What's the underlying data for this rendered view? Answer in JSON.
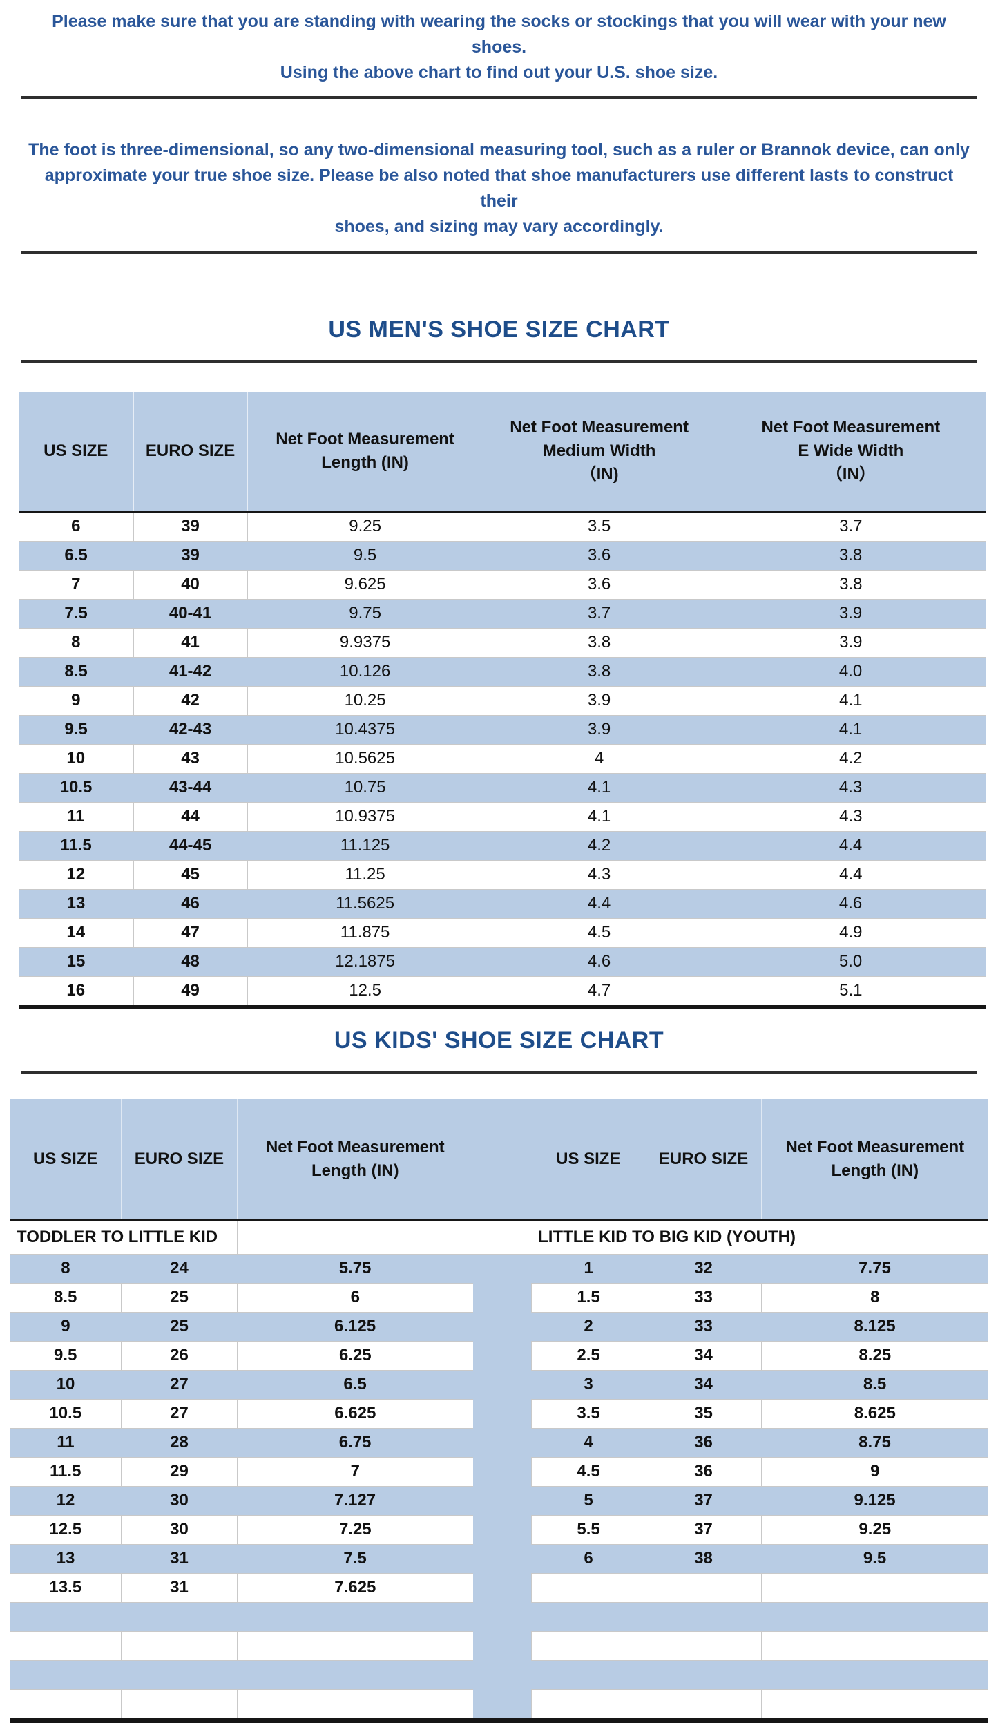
{
  "colors": {
    "stripe_blue": "#B8CCE4",
    "title_blue": "#1E4D8A",
    "intro_blue": "#2A5699",
    "rule_dark": "#2e2e2e",
    "text": "#111111"
  },
  "intro": {
    "paragraph1": "Please make sure that you are standing with wearing the socks or stockings that you will wear with your new shoes.\nUsing the above chart to find out your U.S. shoe size.",
    "paragraph2": "The foot is three-dimensional, so any two-dimensional measuring tool, such as a ruler or Brannok device, can only\napproximate your true shoe size. Please be also noted that shoe manufacturers use different lasts to construct their\nshoes, and sizing may vary accordingly."
  },
  "mens_chart": {
    "title": "US MEN'S SHOE SIZE CHART",
    "headers": [
      "US SIZE",
      "EURO SIZE",
      "Net Foot Measurement\nLength (IN)",
      "Net Foot Measurement\nMedium Width\n（IN)",
      "Net Foot Measurement\nE Wide Width\n（IN）"
    ],
    "rows": [
      [
        "6",
        "39",
        "9.25",
        "3.5",
        "3.7"
      ],
      [
        "6.5",
        "39",
        "9.5",
        "3.6",
        "3.8"
      ],
      [
        "7",
        "40",
        "9.625",
        "3.6",
        "3.8"
      ],
      [
        "7.5",
        "40-41",
        "9.75",
        "3.7",
        "3.9"
      ],
      [
        "8",
        "41",
        "9.9375",
        "3.8",
        "3.9"
      ],
      [
        "8.5",
        "41-42",
        "10.126",
        "3.8",
        "4.0"
      ],
      [
        "9",
        "42",
        "10.25",
        "3.9",
        "4.1"
      ],
      [
        "9.5",
        "42-43",
        "10.4375",
        "3.9",
        "4.1"
      ],
      [
        "10",
        "43",
        "10.5625",
        "4",
        "4.2"
      ],
      [
        "10.5",
        "43-44",
        "10.75",
        "4.1",
        "4.3"
      ],
      [
        "11",
        "44",
        "10.9375",
        "4.1",
        "4.3"
      ],
      [
        "11.5",
        "44-45",
        "11.125",
        "4.2",
        "4.4"
      ],
      [
        "12",
        "45",
        "11.25",
        "4.3",
        "4.4"
      ],
      [
        "13",
        "46",
        "11.5625",
        "4.4",
        "4.6"
      ],
      [
        "14",
        "47",
        "11.875",
        "4.5",
        "4.9"
      ],
      [
        "15",
        "48",
        "12.1875",
        "4.6",
        "5.0"
      ],
      [
        "16",
        "49",
        "12.5",
        "4.7",
        "5.1"
      ]
    ]
  },
  "kids_chart": {
    "title": "US KIDS' SHOE SIZE CHART",
    "headers_left": [
      "US SIZE",
      "EURO SIZE",
      "Net Foot Measurement\nLength (IN)"
    ],
    "headers_right": [
      "US SIZE",
      "EURO SIZE",
      "Net Foot Measurement\nLength (IN)"
    ],
    "section_left": "TODDLER TO LITTLE KID",
    "section_right": "LITTLE KID TO BIG KID (YOUTH)",
    "rows": [
      {
        "left": [
          "8",
          "24",
          "5.75"
        ],
        "right": [
          "1",
          "32",
          "7.75"
        ]
      },
      {
        "left": [
          "8.5",
          "25",
          "6"
        ],
        "right": [
          "1.5",
          "33",
          "8"
        ]
      },
      {
        "left": [
          "9",
          "25",
          "6.125"
        ],
        "right": [
          "2",
          "33",
          "8.125"
        ]
      },
      {
        "left": [
          "9.5",
          "26",
          "6.25"
        ],
        "right": [
          "2.5",
          "34",
          "8.25"
        ]
      },
      {
        "left": [
          "10",
          "27",
          "6.5"
        ],
        "right": [
          "3",
          "34",
          "8.5"
        ]
      },
      {
        "left": [
          "10.5",
          "27",
          "6.625"
        ],
        "right": [
          "3.5",
          "35",
          "8.625"
        ]
      },
      {
        "left": [
          "11",
          "28",
          "6.75"
        ],
        "right": [
          "4",
          "36",
          "8.75"
        ]
      },
      {
        "left": [
          "11.5",
          "29",
          "7"
        ],
        "right": [
          "4.5",
          "36",
          "9"
        ]
      },
      {
        "left": [
          "12",
          "30",
          "7.127"
        ],
        "right": [
          "5",
          "37",
          "9.125"
        ]
      },
      {
        "left": [
          "12.5",
          "30",
          "7.25"
        ],
        "right": [
          "5.5",
          "37",
          "9.25"
        ]
      },
      {
        "left": [
          "13",
          "31",
          "7.5"
        ],
        "right": [
          "6",
          "38",
          "9.5"
        ]
      },
      {
        "left": [
          "13.5",
          "31",
          "7.625"
        ],
        "right": [
          "",
          "",
          ""
        ]
      },
      {
        "left": [
          "",
          "",
          ""
        ],
        "right": [
          "",
          "",
          ""
        ]
      },
      {
        "left": [
          "",
          "",
          ""
        ],
        "right": [
          "",
          "",
          ""
        ]
      },
      {
        "left": [
          "",
          "",
          ""
        ],
        "right": [
          "",
          "",
          ""
        ]
      },
      {
        "left": [
          "",
          "",
          ""
        ],
        "right": [
          "",
          "",
          ""
        ]
      }
    ]
  }
}
